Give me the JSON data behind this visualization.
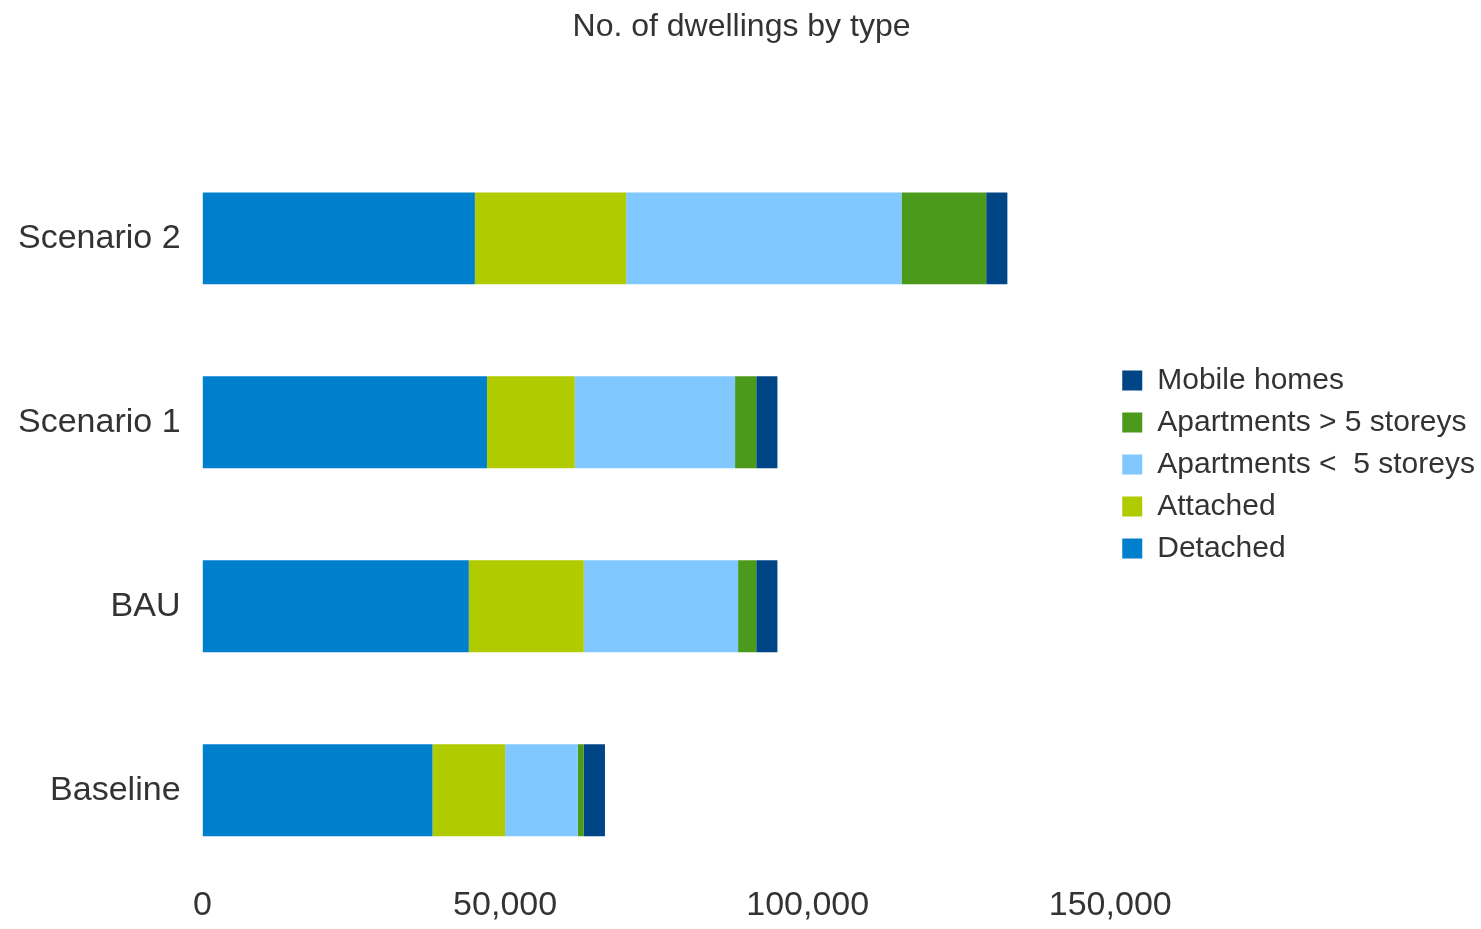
{
  "chart_data": {
    "type": "bar",
    "title": "No. of dwellings by type",
    "orientation": "horizontal",
    "stacked": true,
    "categories": [
      "Scenario 2",
      "Scenario 1",
      "BAU",
      "Baseline"
    ],
    "series": [
      {
        "name": "Detached",
        "color": "#0080cc",
        "values": [
          45000,
          47000,
          44000,
          38000
        ]
      },
      {
        "name": "Attached",
        "color": "#b0cc00",
        "values": [
          25000,
          14500,
          19000,
          12000
        ]
      },
      {
        "name": "Apartments <  5 storeys",
        "color": "#80c8ff",
        "values": [
          45500,
          26500,
          25500,
          12000
        ]
      },
      {
        "name": "Apartments > 5 storeys",
        "color": "#4c9a1c",
        "values": [
          14000,
          3500,
          3000,
          1000
        ]
      },
      {
        "name": "Mobile homes",
        "color": "#004586",
        "values": [
          3500,
          3500,
          3500,
          3500
        ]
      }
    ],
    "xlim": [
      0,
      150000
    ],
    "xticks": [
      0,
      {
        "value": 50000,
        "label": "50,000"
      },
      {
        "value": 100000,
        "label": "100,000"
      },
      {
        "value": 150000,
        "label": "150,000"
      }
    ],
    "grid": false,
    "legend": "right"
  }
}
